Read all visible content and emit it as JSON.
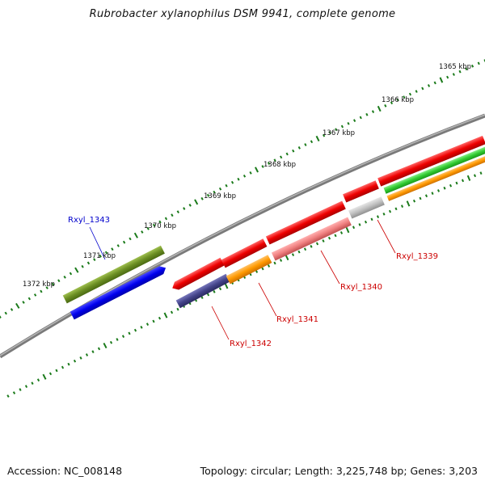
{
  "title": "Rubrobacter xylanophilus DSM 9941, complete genome",
  "footer": {
    "accession": "Accession: NC_008148",
    "summary": "Topology: circular; Length: 3,225,748 bp; Genes: 3,203"
  },
  "ticks_outer": [
    "1365 kbp",
    "1366 kbp",
    "1367 kbp",
    "1368 kbp",
    "1369 kbp",
    "1370 kbp",
    "1371 kbp",
    "1372 kbp"
  ],
  "gene_labels": [
    {
      "name": "Rxyl_1343",
      "color": "#0000cc"
    },
    {
      "name": "Rxyl_1342",
      "color": "#cc0000"
    },
    {
      "name": "Rxyl_1341",
      "color": "#cc0000"
    },
    {
      "name": "Rxyl_1340",
      "color": "#cc0000"
    },
    {
      "name": "Rxyl_1339",
      "color": "#cc0000"
    }
  ],
  "colors": {
    "backbone": "#808080",
    "tick": "#1a7a1a",
    "cds_red": "#ee0000",
    "olive": "#6b8e23",
    "blue": "#0000ee",
    "orange": "#ff9900",
    "green": "#33cc33",
    "pink": "#f08080",
    "gray": "#c0c0c0",
    "slate": "#44448a"
  }
}
